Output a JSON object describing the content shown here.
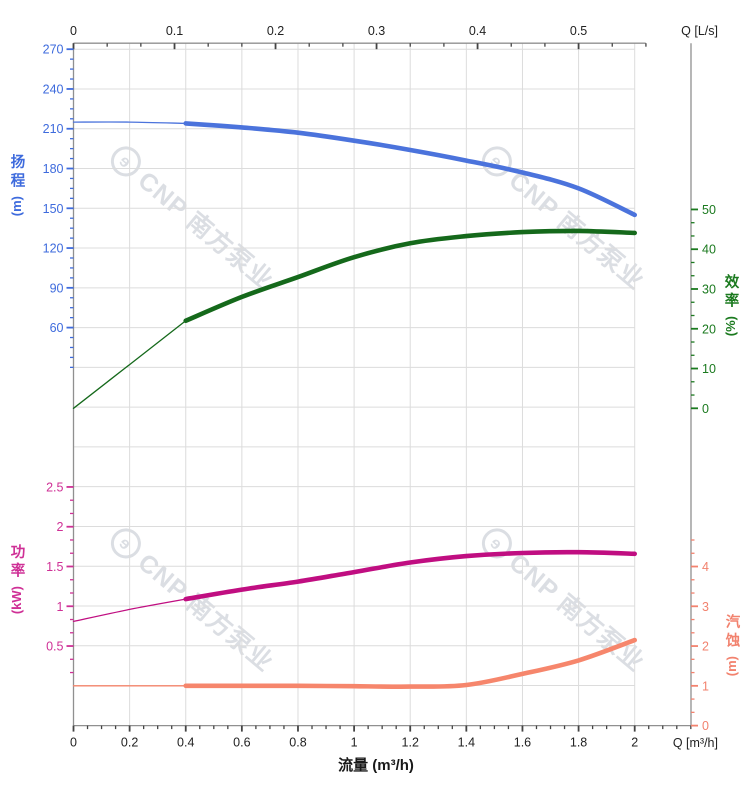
{
  "figure": {
    "watermark_logo": "ɘ",
    "watermark_text": "CNP 南方泵业",
    "watermark_color": "#c4c9d2",
    "background": "#ffffff",
    "grid_color": "#dcdcdc",
    "axis_line_color": "#909090",
    "outer_tick_color": "#444444"
  },
  "chart_data": {
    "type": "line",
    "title": "",
    "legend": false,
    "grid": true,
    "x_axis": {
      "label": "流量 (m³/h)",
      "corner_label": "Q [m³/h]",
      "units": "m³/h",
      "range": [
        0,
        2
      ],
      "major_ticks": [
        0,
        0.2,
        0.4,
        0.6,
        0.8,
        1,
        1.2,
        1.4,
        1.6,
        1.8,
        2
      ],
      "minor_tick_step": 0.05
    },
    "x_axis_top": {
      "corner_label": "Q [L/s]",
      "units": "L/s",
      "range": [
        0,
        0.567
      ],
      "major_ticks": [
        0,
        0.1,
        0.2,
        0.3,
        0.4,
        0.5
      ],
      "m3h_per_Ls": 3.6
    },
    "y_axes": {
      "head": {
        "title": "扬程",
        "unit": "(m)",
        "side": "left",
        "color": "#3e6bdd",
        "ticks": [
          60,
          90,
          120,
          150,
          180,
          210,
          240,
          270
        ],
        "minor_step": 7.5
      },
      "eff": {
        "title": "效率",
        "unit": "(%)",
        "side": "right",
        "color": "#1b7a1f",
        "ticks": [
          0,
          10,
          20,
          30,
          40,
          50
        ],
        "minor_step": 3.333
      },
      "power": {
        "title": "功率",
        "unit": "(kW)",
        "side": "left",
        "color": "#cf3096",
        "ticks": [
          0.5,
          1,
          1.5,
          2,
          2.5
        ],
        "minor_step": 0.1667
      },
      "npsh": {
        "title": "汽蚀",
        "unit": "(m)",
        "side": "right",
        "color": "#f2826e",
        "ticks": [
          0,
          1,
          2,
          3,
          4
        ],
        "minor_step": 0.3333
      }
    },
    "x_m3h": [
      0,
      0.2,
      0.4,
      0.6,
      0.8,
      1.0,
      1.2,
      1.4,
      1.6,
      1.8,
      2.0
    ],
    "thin_line_until_x": 0.4,
    "series": [
      {
        "name": "扬程",
        "english": "head",
        "unit": "m",
        "axis": "head",
        "color": "#4b73dc",
        "values": [
          215,
          215,
          214,
          211,
          207,
          201,
          194,
          186,
          177,
          165,
          145
        ]
      },
      {
        "name": "效率",
        "english": "efficiency",
        "unit": "%",
        "axis": "eff",
        "color": "#15691b",
        "values": [
          0,
          11,
          22,
          28,
          33,
          38,
          41.5,
          43.3,
          44.3,
          44.6,
          44.1
        ]
      },
      {
        "name": "功率",
        "english": "power",
        "unit": "kW",
        "axis": "power",
        "color": "#c00e81",
        "values": [
          0.81,
          0.96,
          1.09,
          1.21,
          1.31,
          1.43,
          1.55,
          1.63,
          1.67,
          1.68,
          1.66
        ]
      },
      {
        "name": "汽蚀",
        "english": "npsh",
        "unit": "m",
        "axis": "npsh",
        "color": "#f6866c",
        "values": [
          1.0,
          1.0,
          1.0,
          1.0,
          1.0,
          0.99,
          0.98,
          1.02,
          1.3,
          1.64,
          2.15
        ]
      }
    ]
  }
}
